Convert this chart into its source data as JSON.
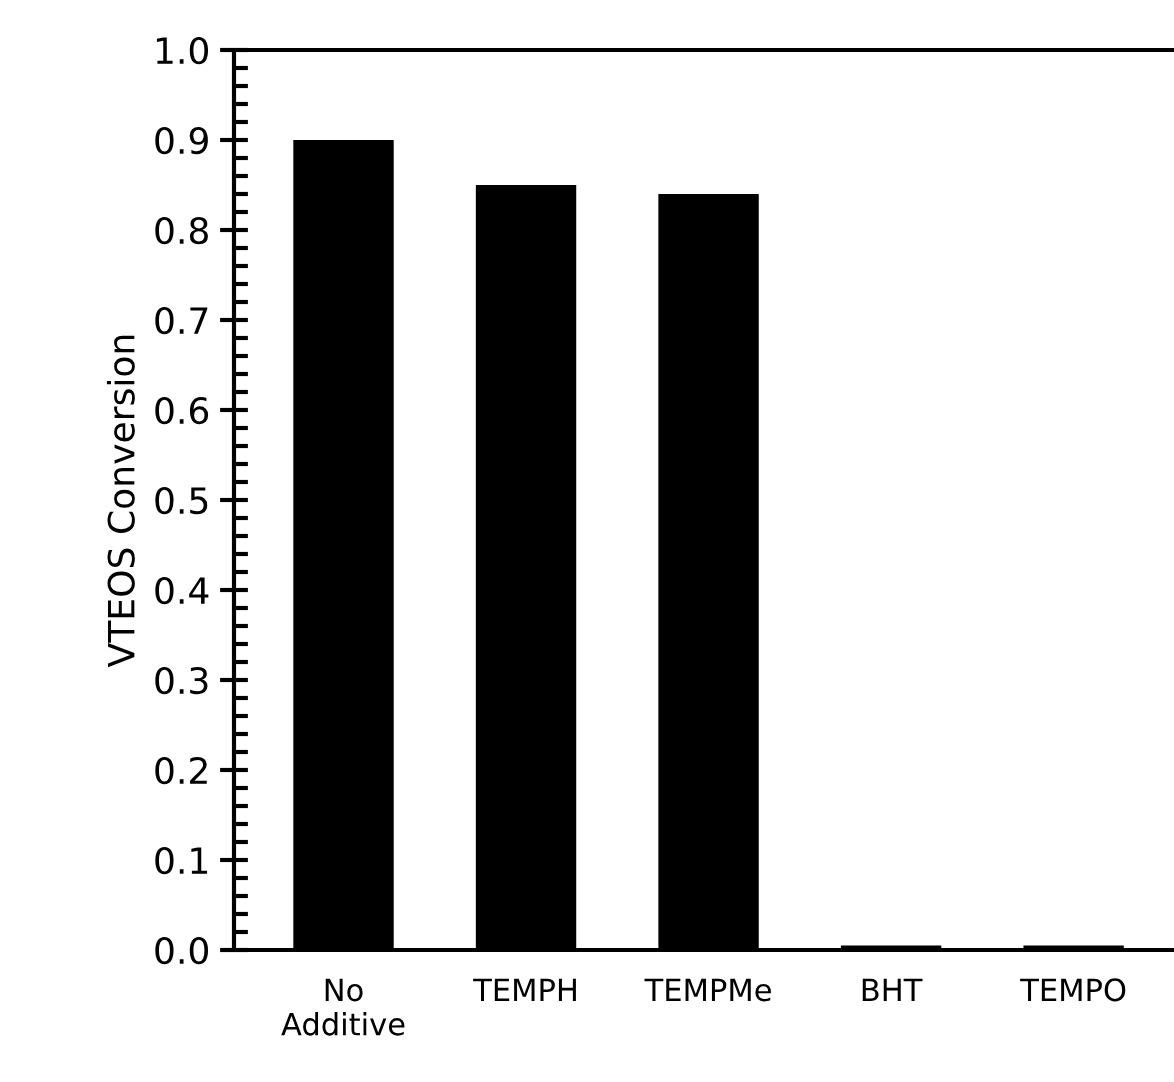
{
  "chart_data": {
    "type": "bar",
    "ylabel": "VTEOS Conversion",
    "categories": [
      "No\nAdditive",
      "TEMPH",
      "TEMPMe",
      "BHT",
      "TEMPO"
    ],
    "values": [
      0.9,
      0.85,
      0.84,
      0.005,
      0.005
    ],
    "color": "#000000",
    "ylim": [
      0,
      1.0
    ],
    "yticks": [
      {
        "value": 0,
        "label": "0.0"
      },
      0.1,
      0.2,
      0.3,
      0.4,
      0.5,
      0.6,
      0.7,
      0.8,
      0.9,
      {
        "value": 1.0,
        "label": "1.0"
      }
    ],
    "grid": false,
    "legend": false
  }
}
